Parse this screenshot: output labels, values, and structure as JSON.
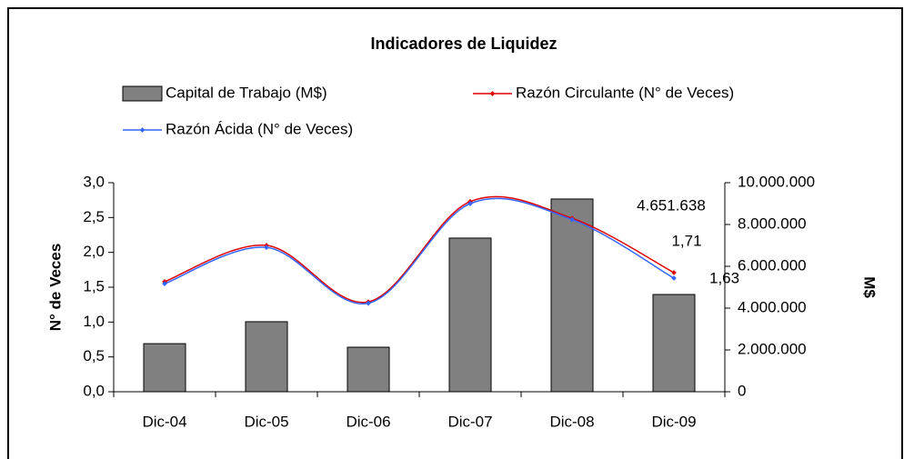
{
  "chart_data": {
    "type": "bar",
    "title": "Indicadores de Liquidez",
    "y_label": "N° de Veces",
    "y2_label": "M$",
    "categories": [
      "Dic-04",
      "Dic-05",
      "Dic-06",
      "Dic-07",
      "Dic-08",
      "Dic-09"
    ],
    "series": [
      {
        "name": "Capital de Trabajo (M$)",
        "type": "bar",
        "axis": "y2",
        "color": "#808080",
        "values": [
          2300000,
          3350000,
          2130000,
          7350000,
          9220000,
          4651638
        ],
        "value_labels": [
          null,
          null,
          null,
          null,
          null,
          "4.651.638"
        ],
        "label_color": "#000000"
      },
      {
        "name": "Razón Circulante (N° de Veces)",
        "type": "line",
        "color": "#e00000",
        "values": [
          1.58,
          2.1,
          1.29,
          2.73,
          2.49,
          1.71
        ],
        "value_labels": [
          null,
          null,
          null,
          null,
          null,
          "1,71"
        ],
        "label_color": "#e00000"
      },
      {
        "name": "Razón Ácida (N° de Veces)",
        "type": "line",
        "color": "#3366ff",
        "values": [
          1.55,
          2.07,
          1.27,
          2.7,
          2.47,
          1.63
        ],
        "value_labels": [
          null,
          null,
          null,
          null,
          null,
          "1,63"
        ],
        "label_color": "#3366ff"
      }
    ],
    "ylim": [
      0,
      3
    ],
    "yticks": [
      {
        "value": 0,
        "label": "0,0"
      },
      {
        "value": 0.5,
        "label": "0,5"
      },
      {
        "value": 1,
        "label": "1,0"
      },
      {
        "value": 1.5,
        "label": "1,5"
      },
      {
        "value": 2,
        "label": "2,0"
      },
      {
        "value": 2.5,
        "label": "2,5"
      },
      {
        "value": 3,
        "label": "3,0"
      }
    ],
    "y2lim": [
      0,
      10000000
    ],
    "y2ticks": [
      0,
      {
        "value": 2000000,
        "label": "2.000.000"
      },
      {
        "value": 4000000,
        "label": "4.000.000"
      },
      {
        "value": 6000000,
        "label": "6.000.000"
      },
      {
        "value": 8000000,
        "label": "8.000.000"
      },
      {
        "value": 10000000,
        "label": "10.000.000"
      }
    ],
    "smooth": true,
    "grid": false
  }
}
